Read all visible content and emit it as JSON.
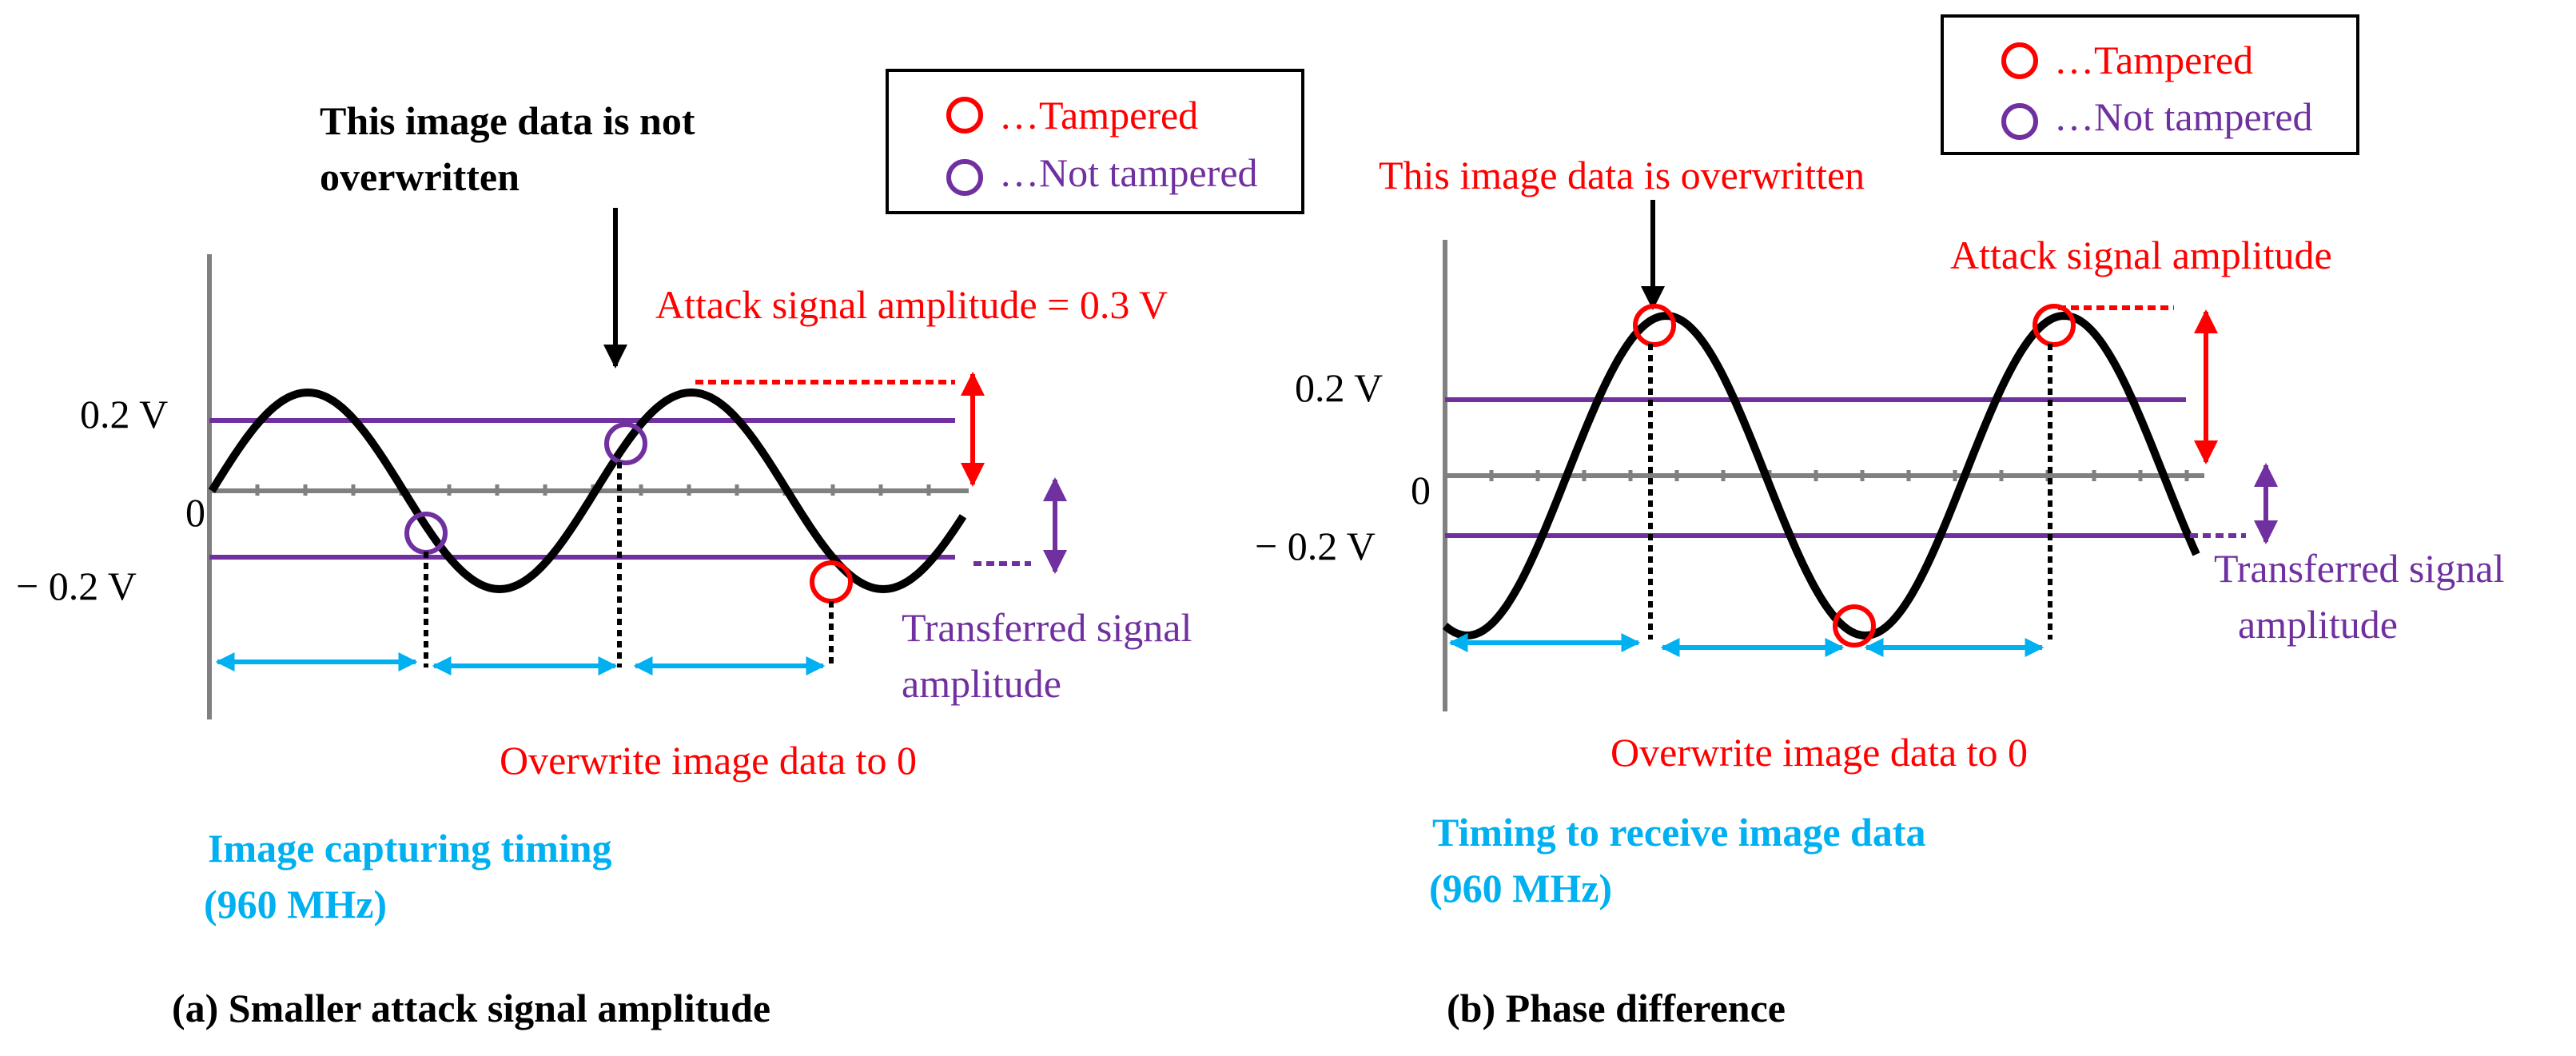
{
  "colors": {
    "tampered": "#ff0000",
    "not_tampered": "#7030a0",
    "timing": "#00b0f0",
    "wave": "#000000",
    "axis": "#808080",
    "text": "#000000"
  },
  "left_panel": {
    "legend": {
      "tampered": "…Tampered",
      "not_tampered": "…Not tampered"
    },
    "annotation_line1": "This image data is not",
    "annotation_line2": "overwritten",
    "attack_label": "Attack signal amplitude = 0.3 V",
    "label_pos": "0.2 V",
    "label_zero": "0",
    "label_neg": "− 0.2 V",
    "transferred_line1": "Transferred signal",
    "transferred_line2": "amplitude",
    "overwrite_label": "Overwrite image data to 0",
    "timing_line1": "Image capturing timing",
    "timing_line2": "(960 MHz)",
    "caption": "(a) Smaller attack signal amplitude"
  },
  "right_panel": {
    "legend": {
      "tampered": "…Tampered",
      "not_tampered": "…Not tampered"
    },
    "annotation": "This image data is overwritten",
    "attack_label": "Attack signal amplitude",
    "label_pos": "0.2 V",
    "label_zero": "0",
    "label_neg": "− 0.2 V",
    "transferred_line1": "Transferred signal",
    "transferred_line2": "amplitude",
    "overwrite_label": "Overwrite image data to 0",
    "timing_line1": "Timing to receive image data",
    "timing_line2": "(960 MHz)",
    "caption": "(b) Phase difference"
  }
}
